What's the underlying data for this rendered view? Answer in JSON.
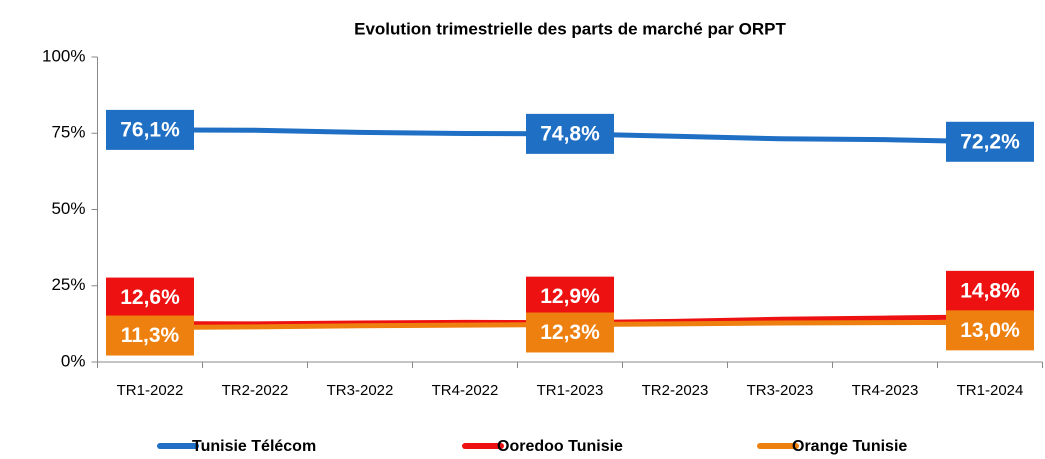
{
  "chart_data": {
    "type": "line",
    "title": "Evolution trimestrielle des parts de marché par ORPT",
    "categories": [
      "TR1-2022",
      "TR2-2022",
      "TR3-2022",
      "TR4-2022",
      "TR1-2023",
      "TR2-2023",
      "TR3-2023",
      "TR4-2023",
      "TR1-2024"
    ],
    "series": [
      {
        "name": "Tunisie Télécom",
        "color": "#1f6fc4",
        "values": [
          76.1,
          76.0,
          75.3,
          74.9,
          74.8,
          74.0,
          73.2,
          72.9,
          72.2
        ],
        "value_labels": [
          "76,1%",
          null,
          null,
          null,
          "74,8%",
          null,
          null,
          null,
          "72,2%"
        ]
      },
      {
        "name": "Ooredoo Tunisie",
        "color": "#ee1111",
        "values": [
          12.6,
          12.5,
          12.8,
          13.0,
          12.9,
          13.3,
          14.0,
          14.4,
          14.8
        ],
        "value_labels": [
          "12,6%",
          null,
          null,
          null,
          "12,9%",
          null,
          null,
          null,
          "14,8%"
        ]
      },
      {
        "name": "Orange Tunisie",
        "color": "#ee8010",
        "values": [
          11.3,
          11.5,
          11.9,
          12.1,
          12.3,
          12.5,
          12.8,
          12.9,
          13.0
        ],
        "value_labels": [
          "11,3%",
          null,
          null,
          null,
          "12,3%",
          null,
          null,
          null,
          "13,0%"
        ]
      }
    ],
    "ylim": [
      0,
      100
    ],
    "yticks": [
      {
        "value": 0,
        "label": "0%"
      },
      {
        "value": 25,
        "label": "25%"
      },
      {
        "value": 50,
        "label": "50%"
      },
      {
        "value": 75,
        "label": "75%"
      },
      {
        "value": 100,
        "label": "100%"
      }
    ],
    "grid": false,
    "legend": "bottom"
  }
}
